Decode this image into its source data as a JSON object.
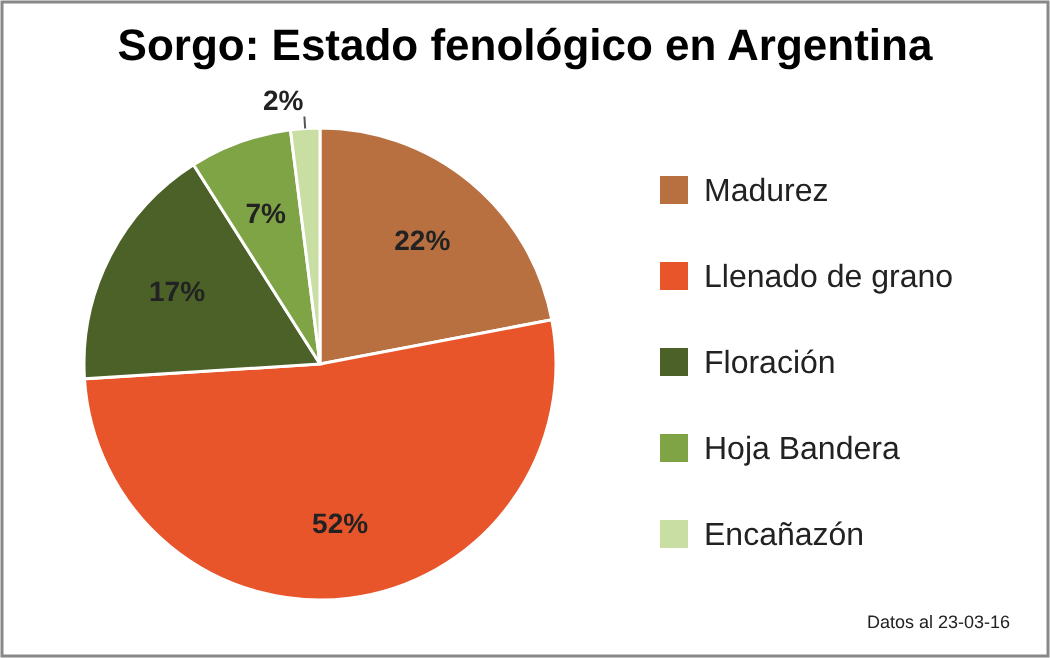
{
  "chart_data": {
    "type": "pie",
    "title": "Sorgo: Estado fenológico en Argentina",
    "categories": [
      "Madurez",
      "Llenado de grano",
      "Floración",
      "Hoja Bandera",
      "Encañazón"
    ],
    "values": [
      22,
      52,
      17,
      7,
      2
    ],
    "colors": [
      "#b87040",
      "#e8552b",
      "#4b6127",
      "#7ea446",
      "#c8dea3"
    ],
    "value_labels": [
      "22%",
      "52%",
      "17%",
      "7%",
      "2%"
    ],
    "legend": "right",
    "annotations": [
      "Datos al 23-03-16"
    ]
  }
}
